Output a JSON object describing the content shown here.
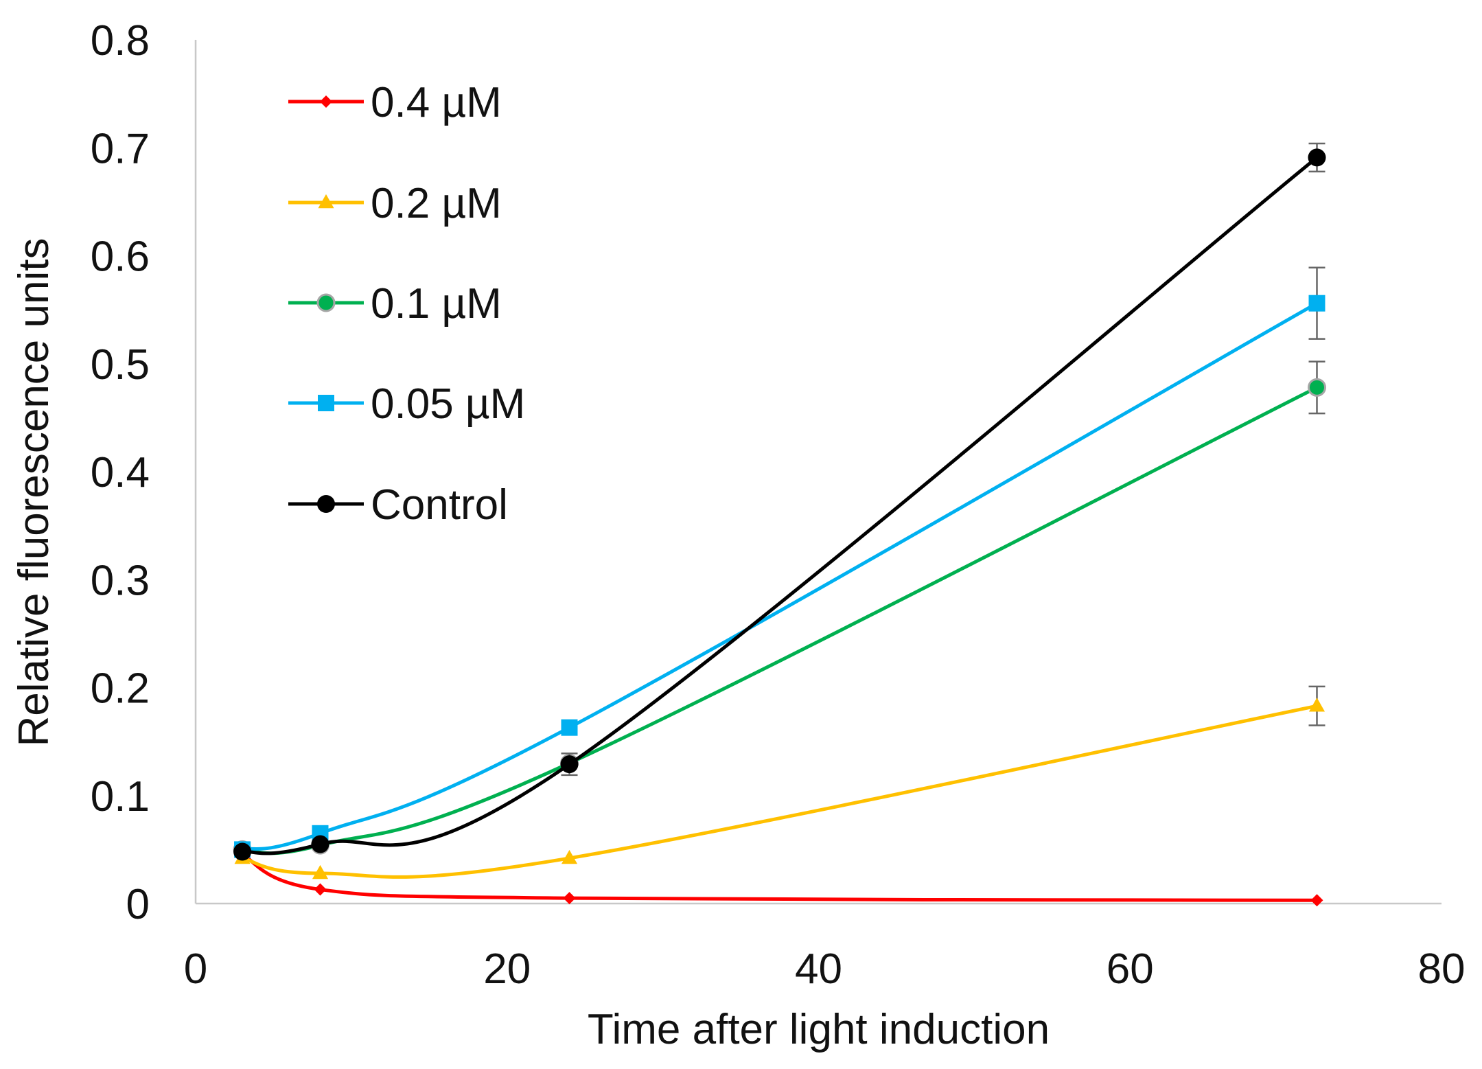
{
  "chart_data": {
    "type": "line",
    "title": "",
    "xlabel": "Time after light induction",
    "ylabel": "Relative fluorescence units",
    "xlim": [
      0,
      80
    ],
    "ylim": [
      0,
      0.8
    ],
    "xticks": [
      0,
      20,
      40,
      60,
      80
    ],
    "yticks": [
      0,
      0.1,
      0.2,
      0.3,
      0.4,
      0.5,
      0.6,
      0.7,
      0.8
    ],
    "grid": false,
    "legend_position": "top-left",
    "x": [
      3,
      8,
      24,
      72
    ],
    "series": [
      {
        "name": "0.4 µM",
        "color": "#ff0000",
        "marker": "diamond",
        "values": [
          0.045,
          0.013,
          0.005,
          0.003
        ],
        "error": [
          0,
          0,
          0,
          0
        ]
      },
      {
        "name": "0.2 µM",
        "color": "#ffc000",
        "marker": "triangle",
        "values": [
          0.042,
          0.028,
          0.042,
          0.183
        ],
        "error": [
          0,
          0,
          0,
          0.018
        ]
      },
      {
        "name": "0.1 µM",
        "color": "#00b050",
        "marker": "circle-grey",
        "values": [
          0.05,
          0.054,
          0.13,
          0.478
        ],
        "error": [
          0,
          0,
          0,
          0.024
        ]
      },
      {
        "name": "0.05 µM",
        "color": "#00b0f0",
        "marker": "square",
        "values": [
          0.05,
          0.065,
          0.163,
          0.556
        ],
        "error": [
          0,
          0,
          0,
          0.033
        ]
      },
      {
        "name": "Control",
        "color": "#000000",
        "marker": "circle",
        "values": [
          0.048,
          0.055,
          0.129,
          0.691
        ],
        "error": [
          0,
          0,
          0.01,
          0.013
        ]
      }
    ]
  }
}
